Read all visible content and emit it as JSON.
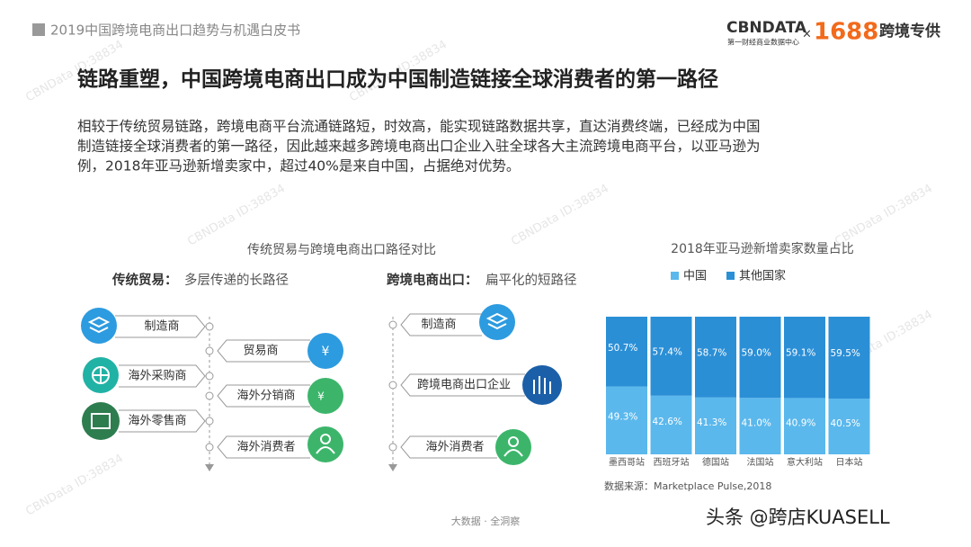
{
  "header": {
    "report_title": "2019中国跨境电商出口趋势与机遇白皮书",
    "logo_left": "CBNDATA",
    "logo_sub": "第一财经商业数据中心",
    "logo_x": "×",
    "logo_right": "1688",
    "logo_right_tag": "跨境专供"
  },
  "watermark": "CBNData ID:38834",
  "title": "链路重塑，中国跨境电商出口成为中国制造链接全球消费者的第一路径",
  "paragraph": [
    "相较于传统贸易链路，跨境电商平台流通链路短，时效高，能实现链路数据共享，直达消费终端，已经成为中国",
    "制造链接全球消费者的第一路径，因此越来越多跨境电商出口企业入驻全球各大主流跨境电商平台，以亚马逊为",
    "例，2018年亚马逊新增卖家中，超过40%是来自中国，占据绝对优势。"
  ],
  "diagram": {
    "title": "传统贸易与跨境电商出口路径对比",
    "left": {
      "label": "传统贸易：",
      "desc": "多层传递的长路径",
      "nodes": [
        "制造商",
        "贸易商",
        "海外采购商",
        "海外分销商",
        "海外零售商",
        "海外消费者"
      ]
    },
    "right": {
      "label": "跨境电商出口：",
      "desc": "扁平化的短路径",
      "nodes": [
        "制造商",
        "跨境电商出口企业",
        "海外消费者"
      ]
    }
  },
  "chart_data": {
    "type": "stacked-bar",
    "title": "2018年亚马逊新增卖家数量占比",
    "categories": [
      "墨西哥站",
      "西班牙站",
      "德国站",
      "法国站",
      "意大利站",
      "日本站"
    ],
    "series": [
      {
        "name": "中国",
        "color": "#5bb8ec",
        "values": [
          49.3,
          42.6,
          41.3,
          41.0,
          40.9,
          40.5
        ],
        "value_labels": [
          "49.3%",
          "42.6%",
          "41.3%",
          "41.0%",
          "40.9%",
          "40.5%"
        ]
      },
      {
        "name": "其他国家",
        "color": "#2b8fd6",
        "values": [
          50.7,
          57.4,
          58.7,
          59.0,
          59.1,
          59.5
        ],
        "value_labels": [
          "50.7%",
          "57.4%",
          "58.7%",
          "59.0%",
          "59.1%",
          "59.5%"
        ]
      }
    ],
    "ylim": [
      0,
      100
    ],
    "source": "数据来源：Marketplace Pulse,2018"
  },
  "footer": {
    "tagline": "大数据 · 全洞察",
    "credit": "头条 @跨店KUASELL"
  }
}
